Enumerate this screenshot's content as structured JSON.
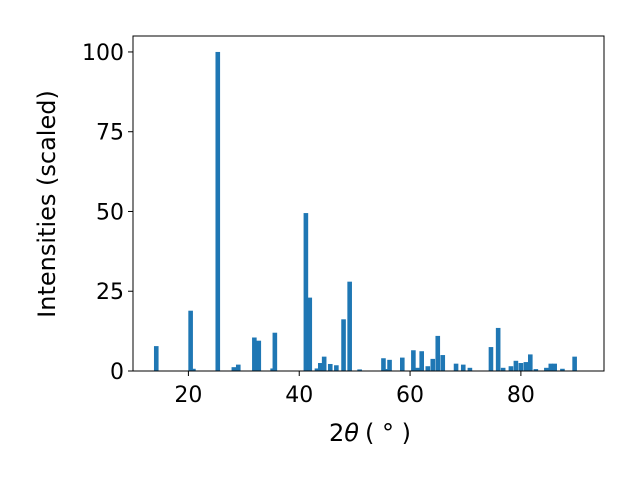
{
  "chart_data": {
    "type": "bar",
    "title": "",
    "ylabel": "Intensities (scaled)",
    "xlabel_main": "2",
    "xlabel_symbol": "θ",
    "xlabel_unit": "( ° )",
    "xlim": [
      10,
      95
    ],
    "ylim": [
      0,
      105
    ],
    "bar_color": "#1f77b4",
    "x_ticks": [
      20,
      40,
      60,
      80
    ],
    "y_ticks": [
      0,
      25,
      50,
      75,
      100
    ],
    "points": [
      {
        "x": 14.2,
        "y": 7.8
      },
      {
        "x": 20.4,
        "y": 18.9
      },
      {
        "x": 20.9,
        "y": 0.7
      },
      {
        "x": 25.3,
        "y": 100
      },
      {
        "x": 28.2,
        "y": 1.2
      },
      {
        "x": 29.0,
        "y": 2.0
      },
      {
        "x": 31.9,
        "y": 10.5
      },
      {
        "x": 32.7,
        "y": 9.5
      },
      {
        "x": 35.2,
        "y": 0.8
      },
      {
        "x": 35.6,
        "y": 12.0
      },
      {
        "x": 41.2,
        "y": 49.5
      },
      {
        "x": 41.9,
        "y": 23.0
      },
      {
        "x": 43.2,
        "y": 0.8
      },
      {
        "x": 43.8,
        "y": 2.5
      },
      {
        "x": 44.5,
        "y": 4.5
      },
      {
        "x": 45.6,
        "y": 2.2
      },
      {
        "x": 46.7,
        "y": 1.8
      },
      {
        "x": 48.0,
        "y": 16.2
      },
      {
        "x": 49.1,
        "y": 28.0
      },
      {
        "x": 50.9,
        "y": 0.5
      },
      {
        "x": 55.2,
        "y": 4.0
      },
      {
        "x": 55.8,
        "y": 0.6
      },
      {
        "x": 56.3,
        "y": 3.5
      },
      {
        "x": 58.6,
        "y": 4.2
      },
      {
        "x": 60.6,
        "y": 6.5
      },
      {
        "x": 61.4,
        "y": 1.0
      },
      {
        "x": 62.1,
        "y": 6.2
      },
      {
        "x": 63.2,
        "y": 1.5
      },
      {
        "x": 64.1,
        "y": 3.8
      },
      {
        "x": 65.0,
        "y": 11.0
      },
      {
        "x": 65.9,
        "y": 5.0
      },
      {
        "x": 68.3,
        "y": 2.3
      },
      {
        "x": 69.6,
        "y": 2.0
      },
      {
        "x": 70.8,
        "y": 1.0
      },
      {
        "x": 74.6,
        "y": 7.5
      },
      {
        "x": 75.9,
        "y": 13.5
      },
      {
        "x": 76.8,
        "y": 1.0
      },
      {
        "x": 78.2,
        "y": 1.5
      },
      {
        "x": 79.1,
        "y": 3.2
      },
      {
        "x": 80.0,
        "y": 2.5
      },
      {
        "x": 80.9,
        "y": 2.8
      },
      {
        "x": 81.7,
        "y": 5.2
      },
      {
        "x": 82.7,
        "y": 0.6
      },
      {
        "x": 84.6,
        "y": 1.0
      },
      {
        "x": 85.4,
        "y": 2.3
      },
      {
        "x": 86.1,
        "y": 2.3
      },
      {
        "x": 87.5,
        "y": 0.7
      },
      {
        "x": 89.7,
        "y": 4.5
      }
    ]
  }
}
